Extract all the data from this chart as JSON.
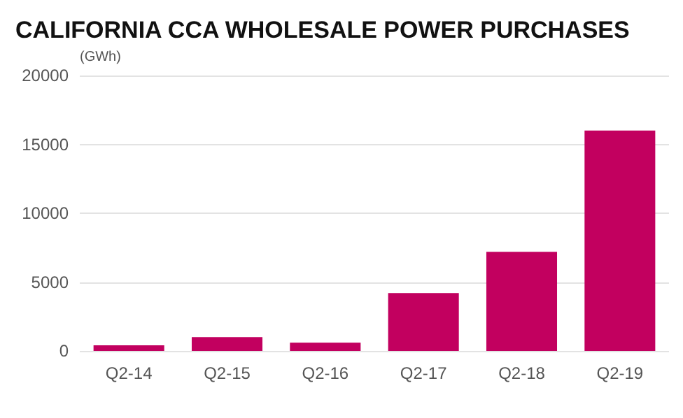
{
  "chart_data": {
    "type": "bar",
    "title": "CALIFORNIA CCA WHOLESALE POWER PURCHASES",
    "ylabel": "(GWh)",
    "categories": [
      "Q2-14",
      "Q2-15",
      "Q2-16",
      "Q2-17",
      "Q2-18",
      "Q2-19"
    ],
    "values": [
      400,
      1000,
      600,
      4200,
      7200,
      16000
    ],
    "color": "#c2005f",
    "ylim": [
      0,
      20000
    ],
    "yticks": [
      0,
      5000,
      10000,
      15000,
      20000
    ],
    "grid": "y"
  }
}
